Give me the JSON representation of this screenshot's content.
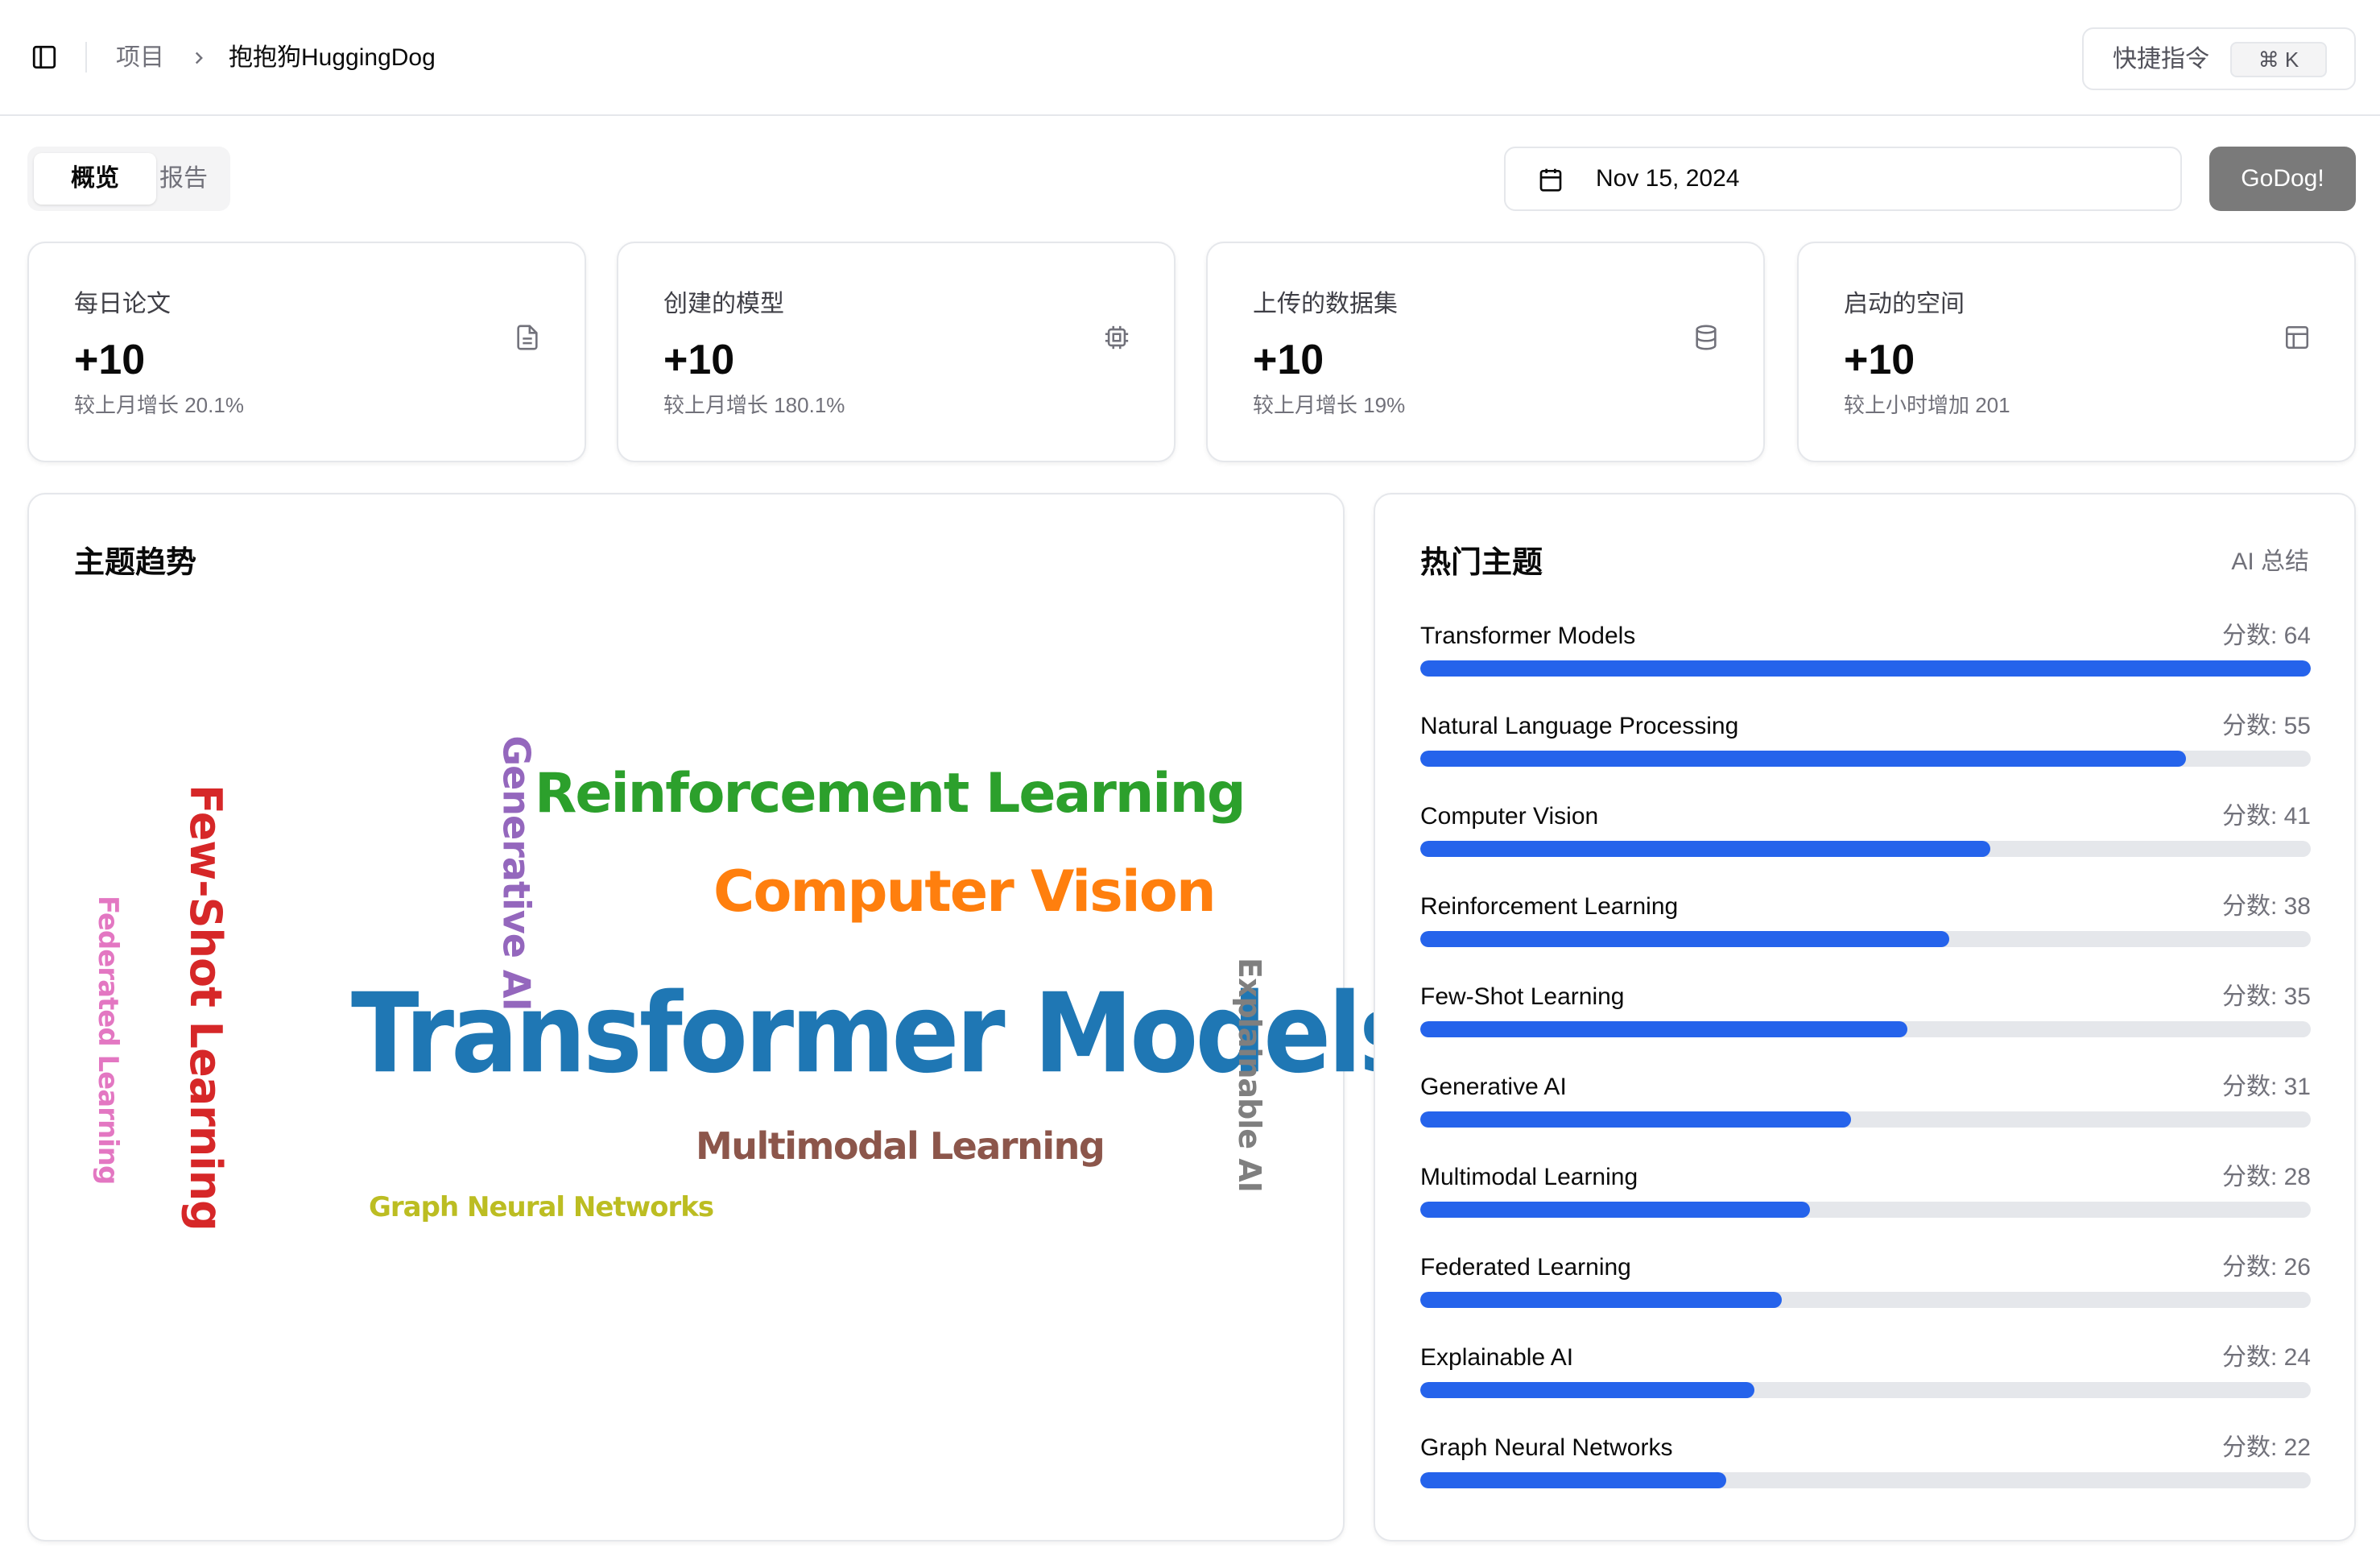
{
  "breadcrumb": {
    "root": "项目",
    "current": "抱抱狗HuggingDog"
  },
  "command": {
    "label": "快捷指令",
    "shortcut": "⌘ K"
  },
  "tabs": [
    {
      "label": "概览",
      "active": true
    },
    {
      "label": "报告",
      "active": false
    }
  ],
  "date": {
    "value": "Nov 15, 2024"
  },
  "go_button": "GoDog!",
  "stats": [
    {
      "title": "每日论文",
      "value": "+10",
      "sub": "较上月增长 20.1%",
      "icon": "file-text-icon"
    },
    {
      "title": "创建的模型",
      "value": "+10",
      "sub": "较上月增长 180.1%",
      "icon": "cpu-icon"
    },
    {
      "title": "上传的数据集",
      "value": "+10",
      "sub": "较上月增长 19%",
      "icon": "database-icon"
    },
    {
      "title": "启动的空间",
      "value": "+10",
      "sub": "较上小时增加 201",
      "icon": "layout-icon"
    }
  ],
  "trend_card": {
    "title": "主题趋势"
  },
  "word_cloud": [
    {
      "text": "Transformer Models",
      "color": "#1f77b4"
    },
    {
      "text": "Reinforcement Learning",
      "color": "#2ca02c"
    },
    {
      "text": "Computer Vision",
      "color": "#ff7f0e"
    },
    {
      "text": "Few-Shot Learning",
      "color": "#d62728"
    },
    {
      "text": "Generative AI",
      "color": "#9467bd"
    },
    {
      "text": "Federated Learning",
      "color": "#e377c2"
    },
    {
      "text": "Explainable AI",
      "color": "#7f7f7f"
    },
    {
      "text": "Multimodal Learning",
      "color": "#8c564b"
    },
    {
      "text": "Graph Neural Networks",
      "color": "#bcbd22"
    }
  ],
  "hot_card": {
    "title": "热门主题",
    "ai_summary": "AI 总结",
    "score_prefix": "分数: "
  },
  "topics": [
    {
      "name": "Transformer Models",
      "score": "分数: 64",
      "ratio": 1.0
    },
    {
      "name": "Natural Language Processing",
      "score": "分数: 55",
      "ratio": 0.86
    },
    {
      "name": "Computer Vision",
      "score": "分数: 41",
      "ratio": 0.64
    },
    {
      "name": "Reinforcement Learning",
      "score": "分数: 38",
      "ratio": 0.594
    },
    {
      "name": "Few-Shot Learning",
      "score": "分数: 35",
      "ratio": 0.547
    },
    {
      "name": "Generative AI",
      "score": "分数: 31",
      "ratio": 0.484
    },
    {
      "name": "Multimodal Learning",
      "score": "分数: 28",
      "ratio": 0.438
    },
    {
      "name": "Federated Learning",
      "score": "分数: 26",
      "ratio": 0.406
    },
    {
      "name": "Explainable AI",
      "score": "分数: 24",
      "ratio": 0.375
    },
    {
      "name": "Graph Neural Networks",
      "score": "分数: 22",
      "ratio": 0.344
    }
  ],
  "colors": {
    "accent": "#2563eb",
    "track": "#e5e7eb",
    "go_button": "#7a7a7a"
  }
}
